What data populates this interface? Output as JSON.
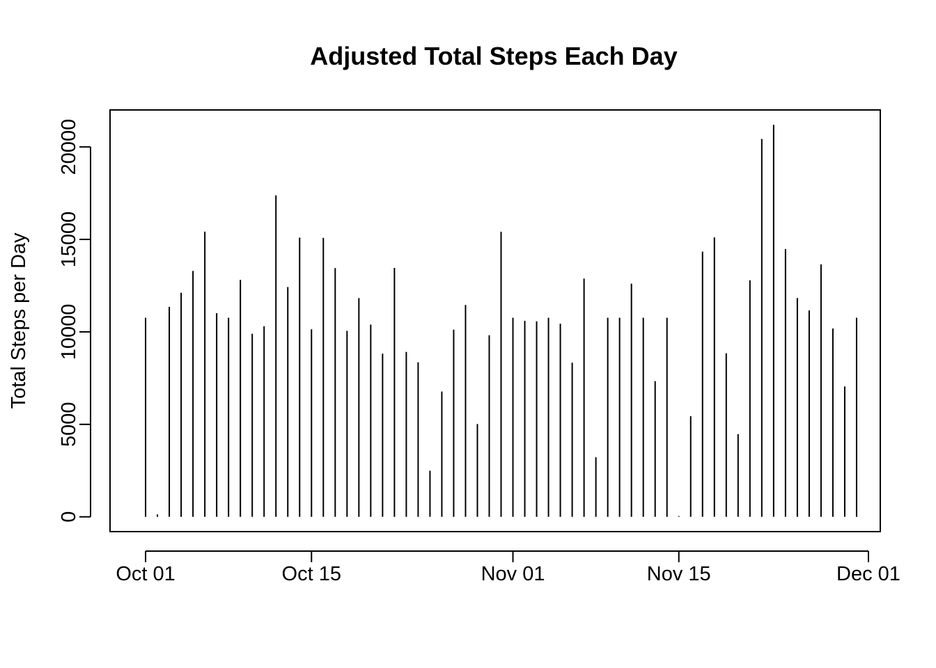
{
  "chart_data": {
    "type": "bar",
    "style": "vertical-lines",
    "title": "Adjusted Total Steps Each Day",
    "xlabel": "",
    "ylabel": "Total Steps per Day",
    "ylim": [
      -800,
      22000
    ],
    "y_ticks": [
      0,
      5000,
      10000,
      15000,
      20000
    ],
    "y_tick_labels": [
      "0",
      "5000",
      "10000",
      "15000",
      "20000"
    ],
    "x_ticks": [
      "2012-10-01",
      "2012-10-15",
      "2012-11-01",
      "2012-11-15",
      "2012-12-01"
    ],
    "x_tick_labels": [
      "Oct 01",
      "Oct 15",
      "Nov 01",
      "Nov 15",
      "Dec 01"
    ],
    "xlim": [
      "2012-09-28",
      "2012-12-02"
    ],
    "grid": false,
    "legend": "none",
    "color": "#000000",
    "dates": [
      "2012-10-01",
      "2012-10-02",
      "2012-10-03",
      "2012-10-04",
      "2012-10-05",
      "2012-10-06",
      "2012-10-07",
      "2012-10-08",
      "2012-10-09",
      "2012-10-10",
      "2012-10-11",
      "2012-10-12",
      "2012-10-13",
      "2012-10-14",
      "2012-10-15",
      "2012-10-16",
      "2012-10-17",
      "2012-10-18",
      "2012-10-19",
      "2012-10-20",
      "2012-10-21",
      "2012-10-22",
      "2012-10-23",
      "2012-10-24",
      "2012-10-25",
      "2012-10-26",
      "2012-10-27",
      "2012-10-28",
      "2012-10-29",
      "2012-10-30",
      "2012-10-31",
      "2012-11-01",
      "2012-11-02",
      "2012-11-03",
      "2012-11-04",
      "2012-11-05",
      "2012-11-06",
      "2012-11-07",
      "2012-11-08",
      "2012-11-09",
      "2012-11-10",
      "2012-11-11",
      "2012-11-12",
      "2012-11-13",
      "2012-11-14",
      "2012-11-15",
      "2012-11-16",
      "2012-11-17",
      "2012-11-18",
      "2012-11-19",
      "2012-11-20",
      "2012-11-21",
      "2012-11-22",
      "2012-11-23",
      "2012-11-24",
      "2012-11-25",
      "2012-11-26",
      "2012-11-27",
      "2012-11-28",
      "2012-11-29",
      "2012-11-30"
    ],
    "values": [
      10766,
      126,
      11352,
      12116,
      13294,
      15420,
      11015,
      10766,
      12811,
      9900,
      10304,
      17382,
      12426,
      15098,
      10139,
      15084,
      13452,
      10056,
      11829,
      10395,
      8821,
      13460,
      8918,
      8355,
      2492,
      6778,
      10119,
      11458,
      5018,
      9819,
      15414,
      10766,
      10600,
      10571,
      10766,
      10439,
      8334,
      12883,
      3219,
      10766,
      10766,
      12608,
      10765,
      7336,
      10766,
      41,
      5441,
      14339,
      15110,
      8841,
      4472,
      12787,
      20427,
      21194,
      14478,
      11834,
      11162,
      13646,
      10183,
      7047,
      10766
    ]
  }
}
